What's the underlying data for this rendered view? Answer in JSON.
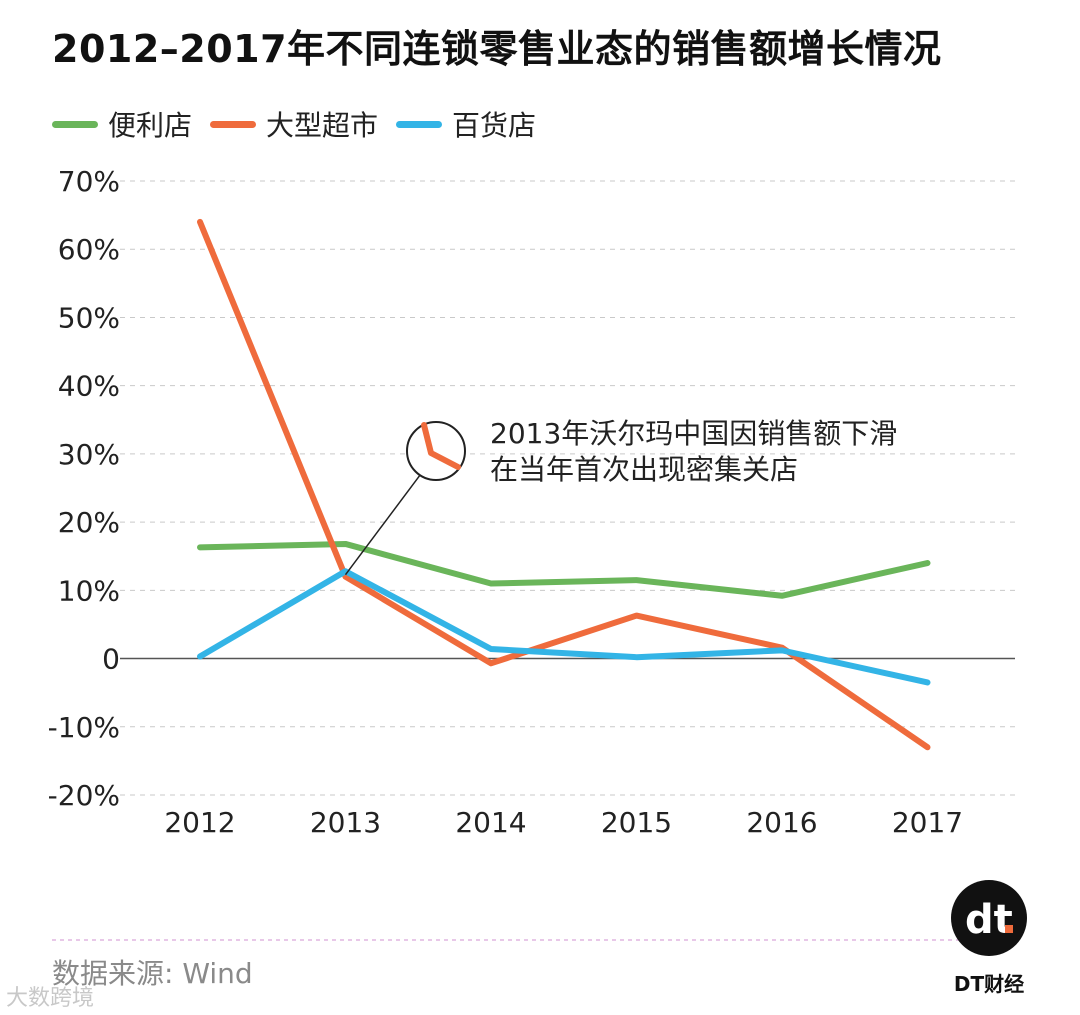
{
  "title": "2012–2017年不同连锁零售业态的销售额增长情况",
  "legend": [
    {
      "label": "便利店",
      "color": "#6ab55a"
    },
    {
      "label": "大型超市",
      "color": "#ef6b3c"
    },
    {
      "label": "百货店",
      "color": "#33b4e6"
    }
  ],
  "annotation": {
    "line1": "2013年沃尔玛中国因销售额下滑",
    "line2": "在当年首次出现密集关店"
  },
  "source": "数据来源: Wind",
  "weibo_mark": "大数跨境",
  "brand": {
    "name": "DT财经",
    "logo_text": "dt"
  },
  "chart_data": {
    "type": "line",
    "title": "2012–2017年不同连锁零售业态的销售额增长情况",
    "x": [
      "2012",
      "2013",
      "2014",
      "2015",
      "2016",
      "2017"
    ],
    "y_unit": "%",
    "ylim": [
      -20,
      70
    ],
    "yticks": [
      70,
      60,
      50,
      40,
      30,
      20,
      10,
      0,
      -10,
      -20
    ],
    "ytick_labels": [
      "70%",
      "60%",
      "50%",
      "40%",
      "30%",
      "20%",
      "10%",
      "0",
      "-10%",
      "-20%"
    ],
    "grid": "dashed horizontal",
    "legend_position": "top-left",
    "series": [
      {
        "name": "便利店",
        "color": "#6ab55a",
        "values": [
          16.3,
          16.8,
          11.0,
          11.5,
          9.2,
          14.0
        ]
      },
      {
        "name": "大型超市",
        "color": "#ef6b3c",
        "values": [
          64.0,
          12.0,
          -0.7,
          6.3,
          1.6,
          -13.0
        ]
      },
      {
        "name": "百货店",
        "color": "#33b4e6",
        "values": [
          0.3,
          12.8,
          1.4,
          0.2,
          1.2,
          -3.5
        ]
      }
    ]
  }
}
